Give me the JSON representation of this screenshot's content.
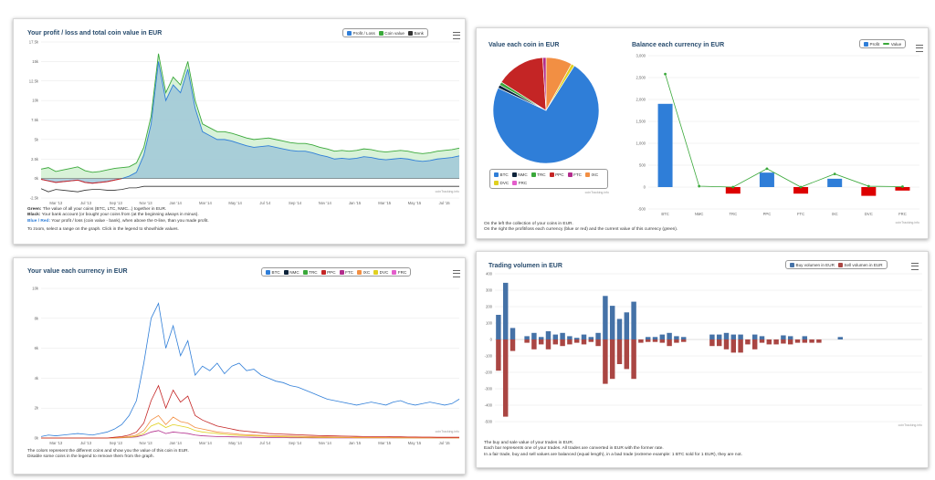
{
  "panel1": {
    "title": "Your profit / loss and total coin value in EUR",
    "legend": [
      {
        "label": "Profit / Loss",
        "color": "#2f7ed8"
      },
      {
        "label": "Coin value",
        "color": "#3aa83a"
      },
      {
        "label": "Bank",
        "color": "#333333"
      }
    ],
    "credit": "coinTracking.info",
    "desc": [
      {
        "strong": "Green:",
        "text": " The value of all your coins (BTC, LTC, NMC...) together in EUR."
      },
      {
        "strong": "Black:",
        "text": " Your bank account (or bought your coins from (at the beginning always in minus)."
      },
      {
        "strong": "Blue / Red:",
        "text": " Your profit / loss (coin value - bank), when above the 0-line, than you made profit."
      },
      {
        "strong": "",
        "text": "To zoom, select a range on the graph. Click in the legend to show/hide values."
      }
    ]
  },
  "panel2": {
    "title": "Your value each currency in EUR",
    "legend": [
      {
        "label": "BTC",
        "color": "#2f7ed8"
      },
      {
        "label": "NMC",
        "color": "#0d233a"
      },
      {
        "label": "TRC",
        "color": "#3aa83a"
      },
      {
        "label": "PPC",
        "color": "#c42525"
      },
      {
        "label": "FTC",
        "color": "#b22c8c"
      },
      {
        "label": "IXC",
        "color": "#f28f43"
      },
      {
        "label": "DVC",
        "color": "#e0d020"
      },
      {
        "label": "FRC",
        "color": "#e35ecb"
      }
    ],
    "credit": "coinTracking.info",
    "desc": [
      "The colors represent the different coins and show you the value of this coin in EUR.",
      "Disable some coins in the legend to remove them from the graph."
    ]
  },
  "panel3": {
    "pie_title": "Value each coin in EUR",
    "bar_title": "Balance each currency in EUR",
    "pie_legend": [
      {
        "label": "BTC",
        "color": "#2f7ed8"
      },
      {
        "label": "NMC",
        "color": "#0d233a"
      },
      {
        "label": "TRC",
        "color": "#3aa83a"
      },
      {
        "label": "PPC",
        "color": "#c42525"
      },
      {
        "label": "FTC",
        "color": "#b22c8c"
      },
      {
        "label": "IXC",
        "color": "#f28f43"
      },
      {
        "label": "DVC",
        "color": "#e0d020"
      },
      {
        "label": "FRC",
        "color": "#e35ecb"
      }
    ],
    "bar_legend": [
      {
        "label": "Profit",
        "color": "#2f7ed8",
        "kind": "box"
      },
      {
        "label": "Value",
        "color": "#3aa83a",
        "kind": "line"
      }
    ],
    "credit": "coinTracking.info",
    "desc": [
      "On the left the collection of your coins in EUR.",
      "On the right the profit/loss each currency (blue or red) and the current value of this currency (green)."
    ]
  },
  "panel4": {
    "title": "Trading volumen in EUR",
    "legend": [
      {
        "label": "Buy volumen in EUR",
        "color": "#4572a7"
      },
      {
        "label": "Sell volumen in EUR",
        "color": "#aa4643"
      }
    ],
    "credit": "coinTracking.info",
    "desc": [
      "The buy and sale value of your trades in EUR.",
      "Each bar represents one of your trades. All trades are converted in EUR with the former rate.",
      "In a fair trade, buy and sell values are balanced (equal length), in a bad trade (extreme example: 1 BTC sold for 1 EUR), they are not."
    ]
  },
  "chart_data": [
    {
      "id": "profit_loss",
      "type": "area",
      "ylim": [
        -2500,
        17500
      ],
      "yticks": [
        "-2.5k",
        "0k",
        "2.5k",
        "5k",
        "7.5k",
        "10k",
        "12.5k",
        "15k",
        "17.5k"
      ],
      "yvals": [
        -2500,
        0,
        2500,
        5000,
        7500,
        10000,
        12500,
        15000,
        17500
      ],
      "xticks": [
        "Mar '13",
        "Jul '13",
        "Sep '13",
        "Nov '13",
        "Jan '14",
        "Mar '14",
        "May '14",
        "Jul '14",
        "Sep '14",
        "Nov '14",
        "Jan '15",
        "Mar '15",
        "May '15",
        "Jul '15"
      ],
      "series": [
        {
          "name": "Coin value",
          "values": [
            1200,
            1400,
            900,
            1100,
            1300,
            1500,
            1000,
            800,
            900,
            1100,
            1300,
            1400,
            1500,
            2000,
            4000,
            8000,
            16000,
            11000,
            13000,
            12000,
            15000,
            10000,
            7000,
            6500,
            6000,
            6000,
            5800,
            5500,
            5200,
            5000,
            5100,
            5200,
            5000,
            4800,
            4600,
            4500,
            4500,
            4300,
            4000,
            3800,
            3500,
            3600,
            3500,
            3600,
            3800,
            3700,
            3500,
            3400,
            3500,
            3600,
            3500,
            3300,
            3200,
            3300,
            3500,
            3600,
            3700,
            3900
          ]
        },
        {
          "name": "Profit / Loss",
          "values": [
            -100,
            -300,
            -500,
            -400,
            -300,
            -200,
            -500,
            -600,
            -500,
            -400,
            -200,
            0,
            300,
            800,
            3000,
            7000,
            15000,
            10000,
            12000,
            11000,
            14000,
            9000,
            6000,
            5500,
            5000,
            5000,
            4800,
            4500,
            4200,
            4000,
            4100,
            4200,
            4000,
            3800,
            3600,
            3500,
            3500,
            3300,
            3000,
            2800,
            2500,
            2600,
            2500,
            2600,
            2800,
            2700,
            2500,
            2400,
            2500,
            2600,
            2500,
            2300,
            2200,
            2300,
            2500,
            2600,
            2700,
            2900
          ]
        },
        {
          "name": "Bank",
          "values": [
            -1300,
            -1700,
            -1400,
            -1500,
            -1600,
            -1700,
            -1500,
            -1400,
            -1400,
            -1500,
            -1500,
            -1400,
            -1200,
            -1200,
            -1000,
            -1000,
            -1000,
            -1000,
            -1000,
            -1000,
            -1000,
            -1000,
            -1000,
            -1000,
            -1000,
            -1000,
            -1000,
            -1000,
            -1000,
            -1000,
            -1000,
            -1000,
            -1000,
            -1000,
            -1000,
            -1000,
            -1000,
            -1000,
            -1000,
            -1000,
            -1000,
            -1000,
            -1000,
            -1000,
            -1000,
            -1000,
            -1000,
            -1000,
            -1000,
            -1000,
            -1000,
            -1000,
            -1000,
            -1000,
            -1000,
            -1000,
            -1000,
            -1000
          ]
        }
      ]
    },
    {
      "id": "value_each",
      "type": "line",
      "ylim": [
        0,
        10000
      ],
      "yticks": [
        "0k",
        "2k",
        "4k",
        "6k",
        "8k",
        "10k"
      ],
      "yvals": [
        0,
        2000,
        4000,
        6000,
        8000,
        10000
      ],
      "xticks": [
        "Mar '13",
        "Jul '13",
        "Sep '13",
        "Nov '13",
        "Jan '14",
        "Mar '14",
        "May '14",
        "Jul '14",
        "Sep '14",
        "Nov '14",
        "Jan '15",
        "Mar '15",
        "May '15",
        "Jul '15"
      ],
      "series": [
        {
          "name": "BTC",
          "values": [
            100,
            200,
            150,
            200,
            250,
            300,
            250,
            200,
            300,
            400,
            600,
            900,
            1500,
            2500,
            5000,
            8000,
            9000,
            6000,
            7500,
            5500,
            6500,
            4200,
            4800,
            4500,
            5000,
            4300,
            4800,
            5000,
            4500,
            4600,
            4200,
            4000,
            3800,
            3700,
            3500,
            3400,
            3200,
            3000,
            2800,
            2600,
            2500,
            2400,
            2300,
            2200,
            2300,
            2400,
            2300,
            2200,
            2400,
            2500,
            2300,
            2200,
            2300,
            2400,
            2300,
            2200,
            2300,
            2600
          ]
        },
        {
          "name": "PPC",
          "values": [
            0,
            0,
            0,
            0,
            0,
            0,
            0,
            0,
            0,
            0,
            50,
            100,
            200,
            400,
            1000,
            2500,
            3500,
            2000,
            3200,
            2400,
            2800,
            1500,
            1200,
            1000,
            800,
            700,
            600,
            500,
            450,
            400,
            350,
            300,
            280,
            260,
            240,
            220,
            200,
            180,
            160,
            150,
            140,
            130,
            120,
            110,
            100,
            100,
            90,
            90,
            80,
            80,
            70,
            70,
            60,
            60,
            50,
            50,
            50,
            50
          ]
        },
        {
          "name": "IXC",
          "values": [
            0,
            0,
            0,
            0,
            0,
            0,
            0,
            0,
            0,
            0,
            20,
            50,
            100,
            200,
            500,
            1200,
            1500,
            900,
            1400,
            1100,
            1000,
            700,
            600,
            500,
            400,
            350,
            300,
            250,
            220,
            200,
            180,
            160,
            150,
            140,
            130,
            120,
            110,
            100,
            90,
            80,
            70,
            60,
            50,
            50,
            40,
            40,
            40,
            30,
            30,
            30,
            30,
            20,
            20,
            20,
            20,
            20,
            20,
            20
          ]
        },
        {
          "name": "DVC",
          "values": [
            0,
            0,
            0,
            0,
            0,
            0,
            0,
            0,
            0,
            0,
            0,
            30,
            60,
            120,
            300,
            800,
            1000,
            700,
            900,
            800,
            700,
            500,
            400,
            350,
            300,
            250,
            200,
            180,
            160,
            140,
            120,
            100,
            90,
            80,
            70,
            60,
            50,
            50,
            40,
            40,
            30,
            30,
            30,
            20,
            20,
            20,
            20,
            20,
            20,
            10,
            10,
            10,
            10,
            10,
            10,
            10,
            10,
            10
          ]
        },
        {
          "name": "FTC",
          "values": [
            0,
            0,
            0,
            0,
            0,
            0,
            0,
            0,
            0,
            0,
            0,
            20,
            40,
            80,
            200,
            400,
            500,
            300,
            400,
            350,
            300,
            200,
            150,
            120,
            100,
            90,
            80,
            70,
            60,
            50,
            40,
            40,
            30,
            30,
            20,
            20,
            20,
            10,
            10,
            10,
            10,
            10,
            10,
            10,
            10,
            10,
            10,
            10,
            10,
            10,
            10,
            10,
            10,
            10,
            10,
            10,
            10,
            10
          ]
        }
      ]
    },
    {
      "id": "pie_value",
      "type": "pie",
      "categories": [
        "BTC",
        "NMC",
        "TRC",
        "PPC",
        "FTC",
        "IXC",
        "DVC",
        "FRC"
      ],
      "values": [
        73,
        1,
        1,
        15,
        1,
        8,
        1,
        0
      ]
    },
    {
      "id": "balance_each",
      "type": "bar",
      "categories": [
        "BTC",
        "NMC",
        "TRC",
        "PPC",
        "FTC",
        "IXC",
        "DVC",
        "FRC"
      ],
      "ylim": [
        -500,
        3000
      ],
      "yticks": [
        "-500",
        "0",
        "500",
        "1,000",
        "1,500",
        "2,000",
        "2,500",
        "3,000"
      ],
      "yvals": [
        -500,
        0,
        500,
        1000,
        1500,
        2000,
        2500,
        3000
      ],
      "series": [
        {
          "name": "Profit",
          "values": [
            1900,
            0,
            -150,
            330,
            -150,
            190,
            -200,
            -80
          ]
        },
        {
          "name": "Value",
          "values": [
            2580,
            20,
            0,
            420,
            0,
            300,
            20,
            10
          ]
        }
      ]
    },
    {
      "id": "trading_volume",
      "type": "bar",
      "ylim": [
        -500,
        400
      ],
      "yticks": [
        "-500",
        "-400",
        "-300",
        "-200",
        "-100",
        "0",
        "100",
        "200",
        "300",
        "400"
      ],
      "yvals": [
        -500,
        -400,
        -300,
        -200,
        -100,
        0,
        100,
        200,
        300,
        400
      ],
      "series": [
        {
          "name": "Buy volumen in EUR",
          "values": [
            150,
            345,
            70,
            0,
            20,
            40,
            15,
            50,
            30,
            40,
            20,
            10,
            30,
            15,
            40,
            265,
            205,
            125,
            165,
            230,
            0,
            15,
            15,
            30,
            40,
            20,
            15,
            0,
            0,
            0,
            30,
            30,
            40,
            30,
            30,
            0,
            30,
            20,
            0,
            0,
            25,
            20,
            0,
            20,
            0,
            0,
            0,
            0,
            15,
            0,
            0,
            0,
            0,
            0,
            0,
            0,
            0,
            0,
            0,
            0
          ]
        },
        {
          "name": "Sell volumen in EUR",
          "values": [
            -190,
            -470,
            -70,
            0,
            -20,
            -60,
            -30,
            -60,
            -30,
            -40,
            -30,
            -20,
            -30,
            -15,
            -40,
            -270,
            -240,
            -150,
            -180,
            -240,
            -20,
            -15,
            -15,
            -20,
            -40,
            -20,
            -15,
            0,
            0,
            0,
            -40,
            -40,
            -60,
            -80,
            -80,
            -30,
            -60,
            -20,
            -30,
            -30,
            -25,
            -30,
            -20,
            -20,
            -20,
            -20,
            0,
            0,
            0,
            0,
            0,
            0,
            0,
            0,
            0,
            0,
            0,
            0,
            0,
            0
          ]
        }
      ]
    }
  ]
}
